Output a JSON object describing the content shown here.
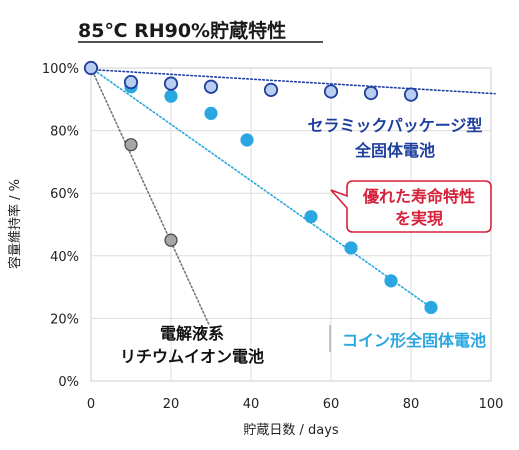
{
  "chart_data": {
    "type": "line",
    "title": "85℃ RH90%貯蔵特性",
    "xlabel": "貯蔵日数 / days",
    "ylabel": "容量維持率 / %",
    "xlim": [
      0,
      100
    ],
    "ylim": [
      0,
      100
    ],
    "x_ticks": [
      0,
      20,
      40,
      60,
      80,
      100
    ],
    "y_ticks": [
      "0%",
      "20%",
      "40%",
      "60%",
      "80%",
      "100%"
    ],
    "grid": true,
    "series": [
      {
        "name": "セラミックパッケージ型全固体電池",
        "marker_color": "#b9cdf0",
        "edge_color": "#1f3f9f",
        "line_color": "#1f3f9f",
        "points": [
          [
            0,
            100
          ],
          [
            10,
            95.5
          ],
          [
            20,
            95
          ],
          [
            30,
            94
          ],
          [
            45,
            93
          ],
          [
            60,
            92.5
          ],
          [
            70,
            92
          ],
          [
            80,
            91.5
          ]
        ],
        "trend": [
          [
            0,
            99.5
          ],
          [
            101,
            91.8
          ]
        ]
      },
      {
        "name": "コイン形全固体電池",
        "marker_color": "#2aa7e0",
        "edge_color": "#2aa7e0",
        "line_color": "#2aa7e0",
        "points": [
          [
            0,
            100
          ],
          [
            10,
            94
          ],
          [
            20,
            91
          ],
          [
            30,
            85.5
          ],
          [
            39,
            77
          ],
          [
            55,
            52.5
          ],
          [
            65,
            42.5
          ],
          [
            75,
            32
          ],
          [
            85,
            23.5
          ]
        ],
        "trend": [
          [
            0,
            100
          ],
          [
            85,
            23.5
          ]
        ]
      },
      {
        "name": "電解液系リチウムイオン電池",
        "marker_color": "#a6a6a6",
        "edge_color": "#444444",
        "line_color": "#777777",
        "points": [
          [
            0,
            100
          ],
          [
            10,
            75.5
          ],
          [
            20,
            45
          ]
        ],
        "trend": [
          [
            0,
            100
          ],
          [
            29.5,
            18
          ]
        ]
      }
    ],
    "annotations": {
      "ceramic_line1": "セラミックパッケージ型",
      "ceramic_line2": "全固体電池",
      "coin": "コイン形全固体電池",
      "electrolyte_line1": "電解液系",
      "electrolyte_line2": "リチウムイオン電池",
      "callout_line1": "優れた寿命特性",
      "callout_line2": "を実現"
    },
    "colors": {
      "ceramic_text": "#1f3f9f",
      "coin_text": "#2aa7e0",
      "callout_text": "#d6213b",
      "callout_border": "#d6213b"
    }
  }
}
